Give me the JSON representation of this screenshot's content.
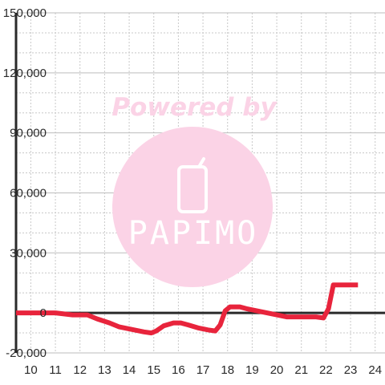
{
  "watermark": {
    "caption": "Powered by",
    "brand": "PAPIMO",
    "logo_icon": "phone-icon",
    "color": "#fbd3e6"
  },
  "colors": {
    "series": "#e8243c",
    "axis": "#2a2a2a",
    "grid_major": "#bdbdbd",
    "grid_minor": "#c8c8c8",
    "background": "#ffffff"
  },
  "chart_data": {
    "type": "line",
    "title": "",
    "xlabel": "",
    "ylabel": "",
    "xlim": [
      9.4,
      24.4
    ],
    "ylim": [
      -20000,
      150000
    ],
    "x_ticks": [
      10,
      11,
      12,
      13,
      14,
      15,
      16,
      17,
      18,
      19,
      20,
      21,
      22,
      23,
      24
    ],
    "x_tick_labels": [
      "10",
      "11",
      "12",
      "13",
      "14",
      "15",
      "16",
      "17",
      "18",
      "19",
      "20",
      "21",
      "22",
      "23",
      "24"
    ],
    "y_ticks": [
      -20000,
      0,
      30000,
      60000,
      90000,
      120000,
      150000
    ],
    "y_tick_labels": [
      "-20,000",
      "0",
      "30,000",
      "60,000",
      "90,000",
      "120,000",
      "150,000"
    ],
    "grid": true,
    "legend": "none",
    "series": [
      {
        "x": [
          9.4,
          11.0,
          11.7,
          12.3,
          12.7,
          13.2,
          13.6,
          14.0,
          14.6,
          14.9,
          15.1,
          15.4,
          15.8,
          16.1,
          16.4,
          16.8,
          17.2,
          17.5,
          17.7,
          17.9,
          18.1,
          18.5,
          18.8,
          19.2,
          19.6,
          20.0,
          20.4,
          20.8,
          21.2,
          21.6,
          21.9,
          22.1,
          22.3,
          22.6,
          23.3
        ],
        "y": [
          0,
          0,
          -1000,
          -1000,
          -3000,
          -5000,
          -7000,
          -8000,
          -9500,
          -10000,
          -9000,
          -6500,
          -5000,
          -5000,
          -6000,
          -7500,
          -8500,
          -9000,
          -6000,
          1000,
          3000,
          3000,
          2000,
          1000,
          0,
          -1000,
          -2000,
          -2000,
          -2000,
          -2000,
          -2500,
          2000,
          14000,
          14000,
          14000
        ]
      }
    ]
  }
}
